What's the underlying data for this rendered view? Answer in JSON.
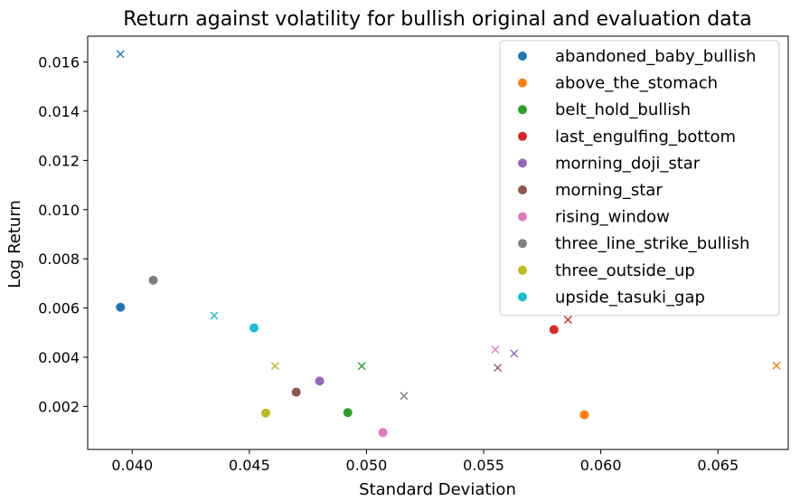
{
  "chart_data": {
    "type": "scatter",
    "title": "Return against volatility for  bullish  original and evaluation data",
    "xlabel": "Standard Deviation",
    "ylabel": "Log Return",
    "xlim": [
      0.0381,
      0.068
    ],
    "ylim": [
      0.00025,
      0.01705
    ],
    "xticks": [
      0.04,
      0.045,
      0.05,
      0.055,
      0.06,
      0.065
    ],
    "xtick_labels": [
      "0.040",
      "0.045",
      "0.050",
      "0.055",
      "0.060",
      "0.065"
    ],
    "yticks": [
      0.002,
      0.004,
      0.006,
      0.008,
      0.01,
      0.012,
      0.014,
      0.016
    ],
    "ytick_labels": [
      "0.002",
      "0.004",
      "0.006",
      "0.008",
      "0.010",
      "0.012",
      "0.014",
      "0.016"
    ],
    "grid": false,
    "legend_position": "top-right",
    "series": [
      {
        "name": "abandoned_baby_bullish",
        "color": "#1f77b4",
        "original": [
          0.0395,
          0.00603
        ],
        "evaluation": [
          0.0395,
          0.01632
        ]
      },
      {
        "name": "above_the_stomach",
        "color": "#ff7f0e",
        "original": [
          0.0593,
          0.00166
        ],
        "evaluation": [
          0.0675,
          0.00366
        ]
      },
      {
        "name": "belt_hold_bullish",
        "color": "#2ca02c",
        "original": [
          0.0492,
          0.00175
        ],
        "evaluation": [
          0.0498,
          0.00364
        ]
      },
      {
        "name": "last_engulfing_bottom",
        "color": "#d62728",
        "original": [
          0.058,
          0.00512
        ],
        "evaluation": [
          0.0586,
          0.00552
        ]
      },
      {
        "name": "morning_doji_star",
        "color": "#9467bd",
        "original": [
          0.048,
          0.00303
        ],
        "evaluation": [
          0.0563,
          0.00415
        ]
      },
      {
        "name": "morning_star",
        "color": "#8c564b",
        "original": [
          0.047,
          0.00258
        ],
        "evaluation": [
          0.0556,
          0.00357
        ]
      },
      {
        "name": "rising_window",
        "color": "#e377c2",
        "original": [
          0.0507,
          0.00094
        ],
        "evaluation": [
          0.0555,
          0.00431
        ]
      },
      {
        "name": "three_line_strike_bullish",
        "color": "#7f7f7f",
        "original": [
          0.0409,
          0.00713
        ],
        "evaluation": [
          0.0516,
          0.00243
        ]
      },
      {
        "name": "three_outside_up",
        "color": "#bcbd22",
        "original": [
          0.0457,
          0.00173
        ],
        "evaluation": [
          0.0461,
          0.00364
        ]
      },
      {
        "name": "upside_tasuki_gap",
        "color": "#17becf",
        "original": [
          0.0452,
          0.00519
        ],
        "evaluation": [
          0.0435,
          0.00569
        ]
      }
    ]
  }
}
